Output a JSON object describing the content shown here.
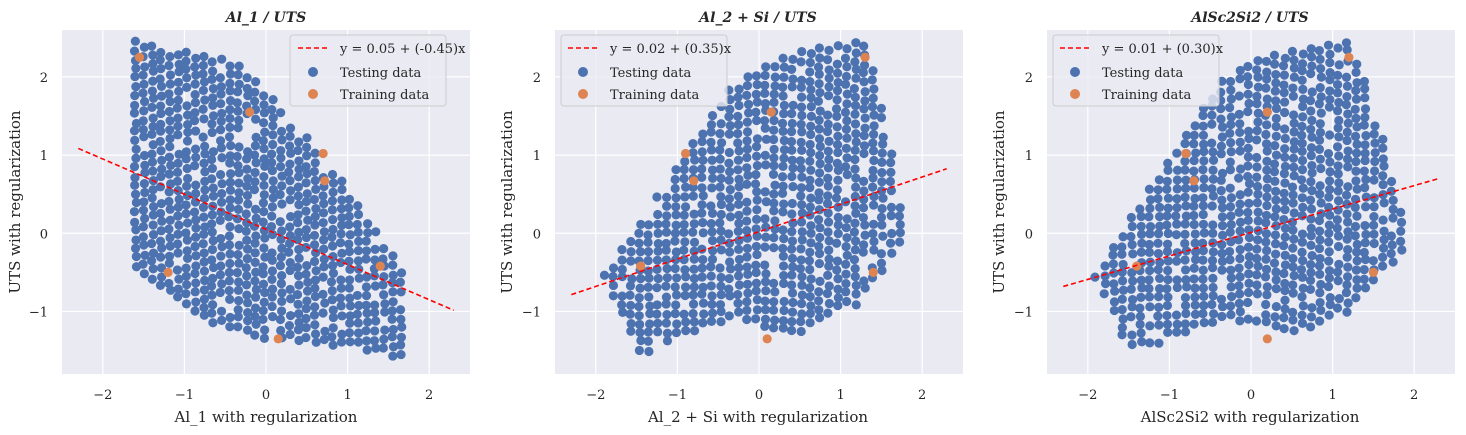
{
  "colors": {
    "panel_bg": "#EAEAF2",
    "grid": "#FFFFFF",
    "testing": "#4C72B0",
    "training": "#DD8452",
    "fit_line": "#FF0000"
  },
  "chart_data": [
    {
      "type": "scatter",
      "title": "Al_1 / UTS",
      "xlabel": "Al_1 with regularization",
      "ylabel": "UTS with regularization",
      "xlim": [
        -2.5,
        2.5
      ],
      "ylim": [
        -1.8,
        2.6
      ],
      "xticks": [
        -2,
        -1,
        0,
        1,
        2
      ],
      "yticks": [
        -1,
        0,
        1,
        2
      ],
      "xtick_labels": [
        "−2",
        "−1",
        "0",
        "1",
        "2"
      ],
      "ytick_labels": [
        "−1",
        "0",
        "1",
        "2"
      ],
      "grid": true,
      "legend_position": "top-right",
      "fit": {
        "label": "y = 0.05 + (-0.45)x",
        "intercept": 0.05,
        "slope": -0.45,
        "x_range": [
          -2.3,
          2.3
        ]
      },
      "testing_cluster": {
        "x_range": [
          -1.6,
          1.75
        ],
        "x_step": 0.105,
        "top": [
          [
            -1.6,
            2.45
          ],
          [
            -0.4,
            2.2
          ],
          [
            0.0,
            1.8
          ],
          [
            0.35,
            1.4
          ],
          [
            0.9,
            0.7
          ],
          [
            1.35,
            0.0
          ],
          [
            1.75,
            -0.6
          ]
        ],
        "bottom": [
          [
            -1.6,
            -0.45
          ],
          [
            -1.0,
            -1.0
          ],
          [
            -0.3,
            -1.3
          ],
          [
            0.4,
            -1.4
          ],
          [
            1.0,
            -1.45
          ],
          [
            1.75,
            -1.65
          ]
        ],
        "y_step": 0.115
      },
      "series": [
        {
          "name": "Testing data",
          "color": "#4C72B0"
        },
        {
          "name": "Training data",
          "color": "#DD8452",
          "x": [
            -1.55,
            -0.2,
            0.7,
            0.72,
            -1.2,
            1.4,
            0.15
          ],
          "y": [
            2.25,
            1.55,
            1.02,
            0.67,
            -0.5,
            -0.42,
            -1.35
          ]
        }
      ]
    },
    {
      "type": "scatter",
      "title": "Al_2 + Si / UTS",
      "xlabel": "Al_2 + Si with regularization",
      "ylabel": "UTS with regularization",
      "xlim": [
        -2.5,
        2.5
      ],
      "ylim": [
        -1.8,
        2.6
      ],
      "xticks": [
        -2,
        -1,
        0,
        1,
        2
      ],
      "yticks": [
        -1,
        0,
        1,
        2
      ],
      "xtick_labels": [
        "−2",
        "−1",
        "0",
        "1",
        "2"
      ],
      "ytick_labels": [
        "−1",
        "0",
        "1",
        "2"
      ],
      "grid": true,
      "legend_position": "top-left",
      "fit": {
        "label": "y = 0.02 + (0.35)x",
        "intercept": 0.02,
        "slope": 0.35,
        "x_range": [
          -2.3,
          2.3
        ]
      },
      "testing_cluster": {
        "x_range": [
          -1.9,
          1.8
        ],
        "x_step": 0.11,
        "top": [
          [
            -1.9,
            -0.55
          ],
          [
            -1.4,
            0.2
          ],
          [
            -0.9,
            1.0
          ],
          [
            -0.4,
            1.8
          ],
          [
            0.0,
            2.1
          ],
          [
            0.6,
            2.35
          ],
          [
            1.3,
            2.45
          ],
          [
            1.5,
            1.7
          ],
          [
            1.8,
            0.0
          ]
        ],
        "bottom": [
          [
            -1.9,
            -0.6
          ],
          [
            -1.6,
            -1.3
          ],
          [
            -1.45,
            -1.6
          ],
          [
            -1.0,
            -1.35
          ],
          [
            -0.3,
            -1.1
          ],
          [
            0.0,
            -1.2
          ],
          [
            0.5,
            -1.3
          ],
          [
            1.2,
            -0.9
          ],
          [
            1.8,
            -0.1
          ]
        ],
        "y_step": 0.115
      },
      "series": [
        {
          "name": "Testing data",
          "color": "#4C72B0"
        },
        {
          "name": "Training data",
          "color": "#DD8452",
          "x": [
            1.3,
            0.15,
            -0.9,
            -0.8,
            -1.45,
            1.4,
            0.1
          ],
          "y": [
            2.25,
            1.55,
            1.02,
            0.67,
            -0.42,
            -0.5,
            -1.35
          ]
        }
      ]
    },
    {
      "type": "scatter",
      "title": "AlSc2Si2 / UTS",
      "xlabel": "AlSc2Si2 with regularization",
      "ylabel": "UTS with regularization",
      "xlim": [
        -2.5,
        2.5
      ],
      "ylim": [
        -1.8,
        2.6
      ],
      "xticks": [
        -2,
        -1,
        0,
        1,
        2
      ],
      "yticks": [
        -1,
        0,
        1,
        2
      ],
      "xtick_labels": [
        "−2",
        "−1",
        "0",
        "1",
        "2"
      ],
      "ytick_labels": [
        "−1",
        "0",
        "1",
        "2"
      ],
      "grid": true,
      "legend_position": "top-left",
      "fit": {
        "label": "y = 0.01 + (0.30)x",
        "intercept": 0.01,
        "slope": 0.3,
        "x_range": [
          -2.3,
          2.3
        ]
      },
      "testing_cluster": {
        "x_range": [
          -1.9,
          1.9
        ],
        "x_step": 0.11,
        "top": [
          [
            -1.9,
            -0.55
          ],
          [
            -1.4,
            0.3
          ],
          [
            -0.9,
            1.1
          ],
          [
            -0.4,
            1.9
          ],
          [
            0.0,
            2.2
          ],
          [
            0.6,
            2.35
          ],
          [
            1.2,
            2.45
          ],
          [
            1.5,
            1.7
          ],
          [
            1.9,
            0.0
          ]
        ],
        "bottom": [
          [
            -1.9,
            -0.6
          ],
          [
            -1.6,
            -1.3
          ],
          [
            -1.4,
            -1.6
          ],
          [
            -1.0,
            -1.35
          ],
          [
            -0.3,
            -1.1
          ],
          [
            0.0,
            -1.2
          ],
          [
            0.5,
            -1.3
          ],
          [
            1.2,
            -1.0
          ],
          [
            1.9,
            -0.2
          ]
        ],
        "y_step": 0.115
      },
      "series": [
        {
          "name": "Testing data",
          "color": "#4C72B0"
        },
        {
          "name": "Training data",
          "color": "#DD8452",
          "x": [
            1.2,
            0.2,
            -0.8,
            -0.7,
            -1.4,
            1.5,
            0.2
          ],
          "y": [
            2.25,
            1.55,
            1.02,
            0.67,
            -0.42,
            -0.5,
            -1.35
          ]
        }
      ]
    }
  ]
}
